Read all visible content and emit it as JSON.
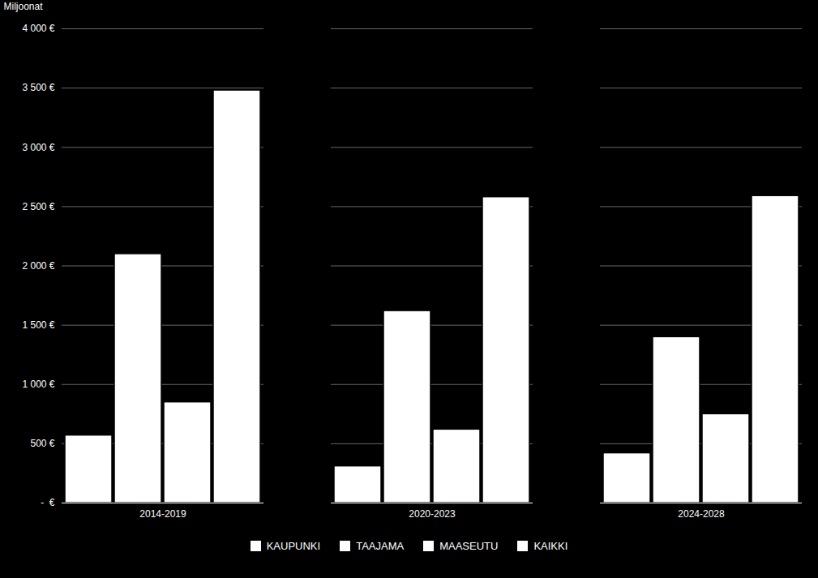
{
  "chart_data": {
    "type": "bar",
    "categories": [
      "2014-2019",
      "2020-2023",
      "2024-2028"
    ],
    "series": [
      {
        "name": "KAUPUNKI",
        "color": "#ffffff",
        "values": [
          570,
          310,
          420
        ]
      },
      {
        "name": "TAAJAMA",
        "color": "#ffffff",
        "values": [
          2100,
          1620,
          1400
        ]
      },
      {
        "name": "MAASEUTU",
        "color": "#ffffff",
        "values": [
          850,
          620,
          750
        ]
      },
      {
        "name": "KAIKKI",
        "color": "#ffffff",
        "values": [
          3480,
          2580,
          2590
        ]
      }
    ],
    "ylabel": "Miljoonat",
    "ylim": [
      0,
      4000
    ],
    "yticks": [
      {
        "value": 0,
        "label": "-  €"
      },
      {
        "value": 500,
        "label": "500 €"
      },
      {
        "value": 1000,
        "label": "1 000 €"
      },
      {
        "value": 1500,
        "label": "1 500 €"
      },
      {
        "value": 2000,
        "label": "2 000 €"
      },
      {
        "value": 2500,
        "label": "2 500 €"
      },
      {
        "value": 3000,
        "label": "3 000 €"
      },
      {
        "value": 3500,
        "label": "3 500 €"
      },
      {
        "value": 4000,
        "label": "4 000 €"
      }
    ],
    "grid": true,
    "legend": "bottom"
  }
}
